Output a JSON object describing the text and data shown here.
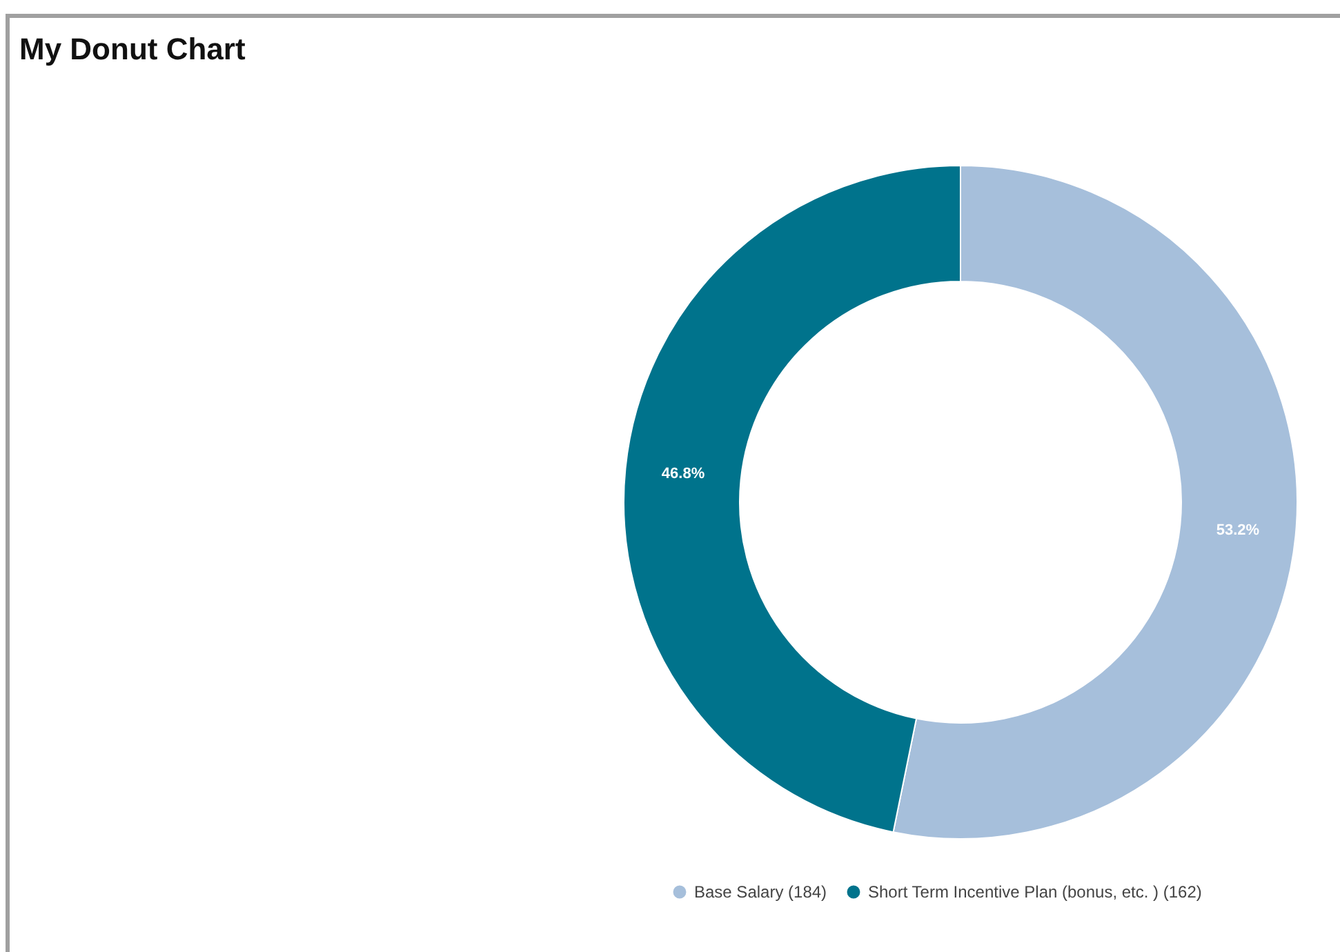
{
  "chart_data": {
    "type": "donut",
    "title": "My Donut Chart",
    "categories": [
      "Base Salary (184)",
      "Short Term Incentive Plan (bonus, etc. ) (162)"
    ],
    "values": [
      53.2,
      46.8
    ],
    "colors": [
      "#a6bfdb",
      "#00738c"
    ],
    "value_labels": [
      "53.2%",
      "46.8%"
    ],
    "legend": "bottom"
  }
}
